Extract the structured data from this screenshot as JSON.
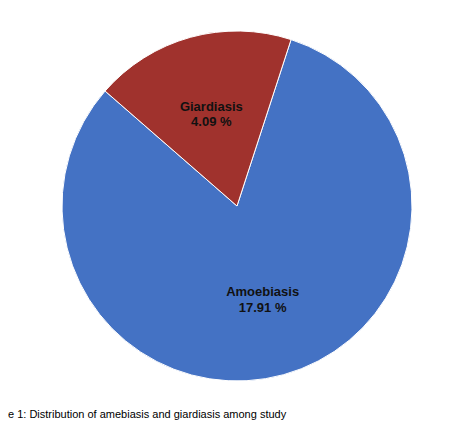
{
  "chart_data": {
    "type": "pie",
    "categories": [
      "Amoebiasis",
      "Giardiasis"
    ],
    "values": [
      17.91,
      4.09
    ],
    "value_labels": [
      "17.91 %",
      "4.09 %"
    ],
    "colors": [
      "#4472C4",
      "#A0322D"
    ],
    "data_labels": true,
    "annotations": [
      "e 1: Distribution of amebiasis and giardiasis among study"
    ]
  }
}
